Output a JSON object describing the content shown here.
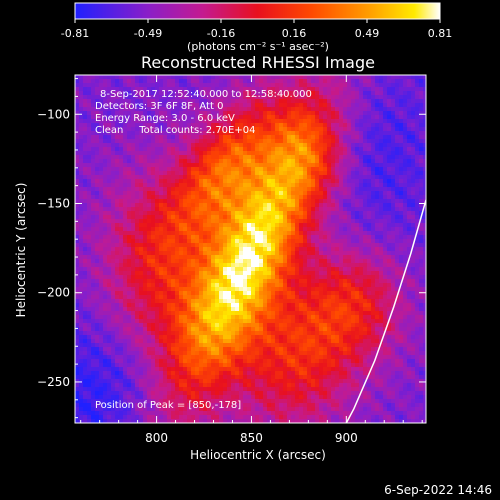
{
  "chart_data": {
    "type": "heatmap",
    "title": "Reconstructed RHESSI Image",
    "xlabel": "Heliocentric X (arcsec)",
    "ylabel": "Heliocentric Y (arcsec)",
    "xlim": [
      757,
      942
    ],
    "ylim": [
      -273,
      -78
    ],
    "xticks": [
      800,
      850,
      900
    ],
    "yticks": [
      -100,
      -150,
      -200,
      -250
    ],
    "colorbar": {
      "ticks": [
        "-0.81",
        "-0.49",
        "-0.16",
        "0.16",
        "0.49",
        "0.81"
      ],
      "range": [
        -0.81,
        0.81
      ],
      "unit_label": "(photons cm⁻² s⁻¹ asec⁻²)",
      "colors": [
        "#2020ff",
        "#8a1ec8",
        "#c41a90",
        "#e8101e",
        "#ff4a00",
        "#ff9a00",
        "#ffea00",
        "#ffffff"
      ]
    },
    "annotations": [
      "8-Sep-2017 12:52:40.000 to 12:58:40.000",
      "Detectors: 3F 6F 8F, Att 0",
      "Energy Range: 3.0 - 6.0 keV",
      "Clean     Total counts: 2.70E+04"
    ],
    "peak_label": "Position of Peak = [850,-178]",
    "peak": [
      850,
      -178
    ],
    "limb": [
      [
        942,
        -148
      ],
      [
        934,
        -178
      ],
      [
        925,
        -208
      ],
      [
        915,
        -238
      ],
      [
        904,
        -265
      ],
      [
        900,
        -273
      ]
    ]
  },
  "footer": {
    "timestamp": "6-Sep-2022 14:46"
  }
}
